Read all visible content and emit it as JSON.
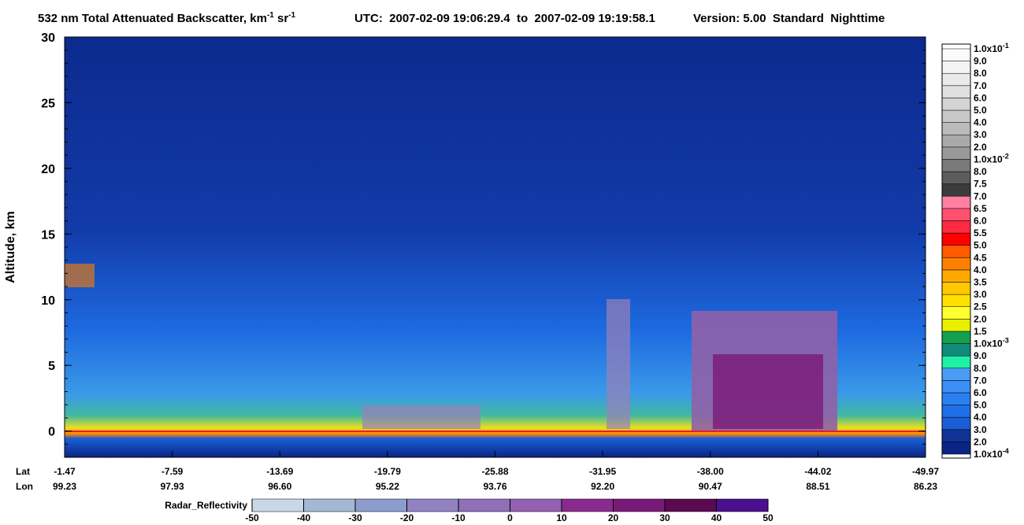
{
  "chart_data": {
    "type": "heatmap",
    "title_parts": [
      {
        "text": "532 nm Total Attenuated Backscatter, km"
      },
      {
        "sup": "-1"
      },
      {
        "text": " sr"
      },
      {
        "sup": "-1"
      },
      {
        "text": "UTC:  2007-02-09 19:06:29.4  to  2007-02-09 19:19:58.1"
      },
      {
        "text": "Version: 5.00  Standard  Nighttime"
      }
    ],
    "ylabel": "Altitude, km",
    "ylim": [
      -2,
      30
    ],
    "yticks": [
      0,
      5,
      10,
      15,
      20,
      25,
      30
    ],
    "x_rows": [
      {
        "name": "Lat",
        "values": [
          "-1.47",
          "-7.59",
          "-13.69",
          "-19.79",
          "-25.88",
          "-31.95",
          "-38.00",
          "-44.02",
          "-49.97"
        ]
      },
      {
        "name": "Lon",
        "values": [
          "99.23",
          "97.93",
          "96.60",
          "95.22",
          "93.76",
          "92.20",
          "90.47",
          "88.51",
          "86.23"
        ]
      }
    ],
    "colorbar": {
      "labels": [
        {
          "text": "1.0x10",
          "sup": "-4"
        },
        "2.0",
        "3.0",
        "4.0",
        "5.0",
        "6.0",
        "7.0",
        "8.0",
        "9.0",
        {
          "text": "1.0x10",
          "sup": "-3"
        },
        "1.5",
        "2.0",
        "2.5",
        "3.0",
        "3.5",
        "4.0",
        "4.5",
        "5.0",
        "5.5",
        "6.0",
        "6.5",
        "7.0",
        "7.5",
        "8.0",
        {
          "text": "1.0x10",
          "sup": "-2"
        },
        "2.0",
        "3.0",
        "4.0",
        "5.0",
        "6.0",
        "7.0",
        "8.0",
        "9.0",
        {
          "text": "1.0x10",
          "sup": "-1"
        }
      ],
      "colors": [
        "#0a2585",
        "#103296",
        "#1a5fd6",
        "#1f6fe6",
        "#2a80f0",
        "#3a8ef5",
        "#4a9cf5",
        "#20f0a8",
        "#108c7a",
        "#12a050",
        "#e8f000",
        "#ffff30",
        "#ffe000",
        "#ffc800",
        "#ffa800",
        "#ff8000",
        "#ff5a00",
        "#ff0000",
        "#ff2a40",
        "#ff5070",
        "#ff80a0",
        "#3c3c3c",
        "#5c5c5c",
        "#7a7a7a",
        "#999999",
        "#aaaaaa",
        "#bbbbbb",
        "#c8c8c8",
        "#d4d4d4",
        "#e0e0e0",
        "#eaeaea",
        "#f3f3f3",
        "#fbfbfb"
      ]
    },
    "radar_colorbar": {
      "label": "Radar_Reflectivity",
      "ticks": [
        -50,
        -40,
        -30,
        -20,
        -10,
        0,
        10,
        20,
        30,
        40,
        50
      ],
      "colors": [
        "#c8d8e8",
        "#a4b8d4",
        "#8c9ccc",
        "#9282c2",
        "#9070b8",
        "#9460b2",
        "#8a2a90",
        "#7a1a78",
        "#5a0a50",
        "#4a1090"
      ]
    }
  }
}
